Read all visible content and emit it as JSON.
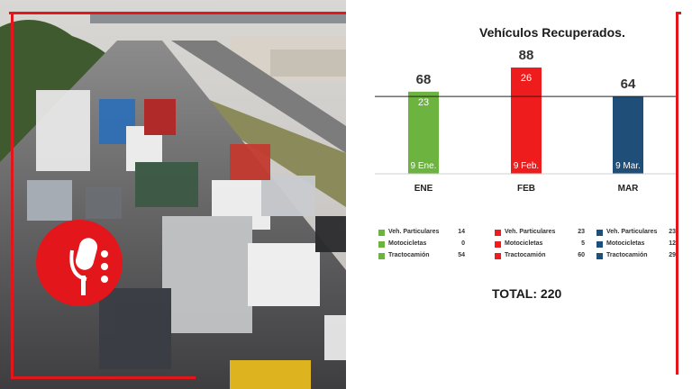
{
  "chart_data": {
    "type": "bar",
    "title": "Vehículos Recuperados.",
    "categories": [
      "ENE",
      "FEB",
      "MAR"
    ],
    "values": [
      68,
      88,
      64
    ],
    "inner_values": [
      "23",
      "26",
      ""
    ],
    "date_labels": [
      "9 Ene.",
      "9 Feb.",
      "9 Mar."
    ],
    "colors": [
      "#6db33f",
      "#ee1c1c",
      "#1f4e79"
    ],
    "ylim": [
      0,
      88
    ],
    "grid": false,
    "legend": [
      {
        "color": "#6db33f",
        "items": [
          {
            "label": "Veh. Particulares",
            "value": "14"
          },
          {
            "label": "Motocicletas",
            "value": "0"
          },
          {
            "label": "Tractocamión",
            "value": "54"
          }
        ]
      },
      {
        "color": "#ee1c1c",
        "items": [
          {
            "label": "Veh. Particulares",
            "value": "23"
          },
          {
            "label": "Motocicletas",
            "value": "5"
          },
          {
            "label": "Tractocamión",
            "value": "60"
          }
        ]
      },
      {
        "color": "#1f4e79",
        "items": [
          {
            "label": "Veh. Particulares",
            "value": "23"
          },
          {
            "label": "Motocicletas",
            "value": "12"
          },
          {
            "label": "Tractocamión",
            "value": "29"
          }
        ]
      }
    ],
    "total": "TOTAL: 220"
  },
  "icons": {
    "badge": "microphone-icon"
  }
}
